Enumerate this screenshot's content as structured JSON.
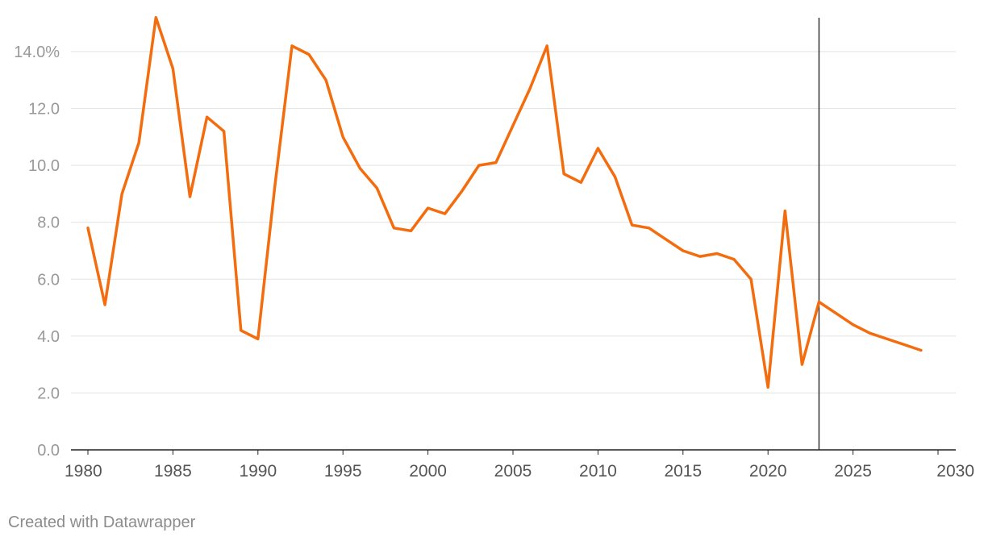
{
  "chart_data": {
    "type": "line",
    "title": "",
    "xlabel": "",
    "ylabel": "",
    "xlim": [
      1980,
      2030
    ],
    "ylim": [
      0,
      15.5
    ],
    "x_ticks": [
      1980,
      1985,
      1990,
      1995,
      2000,
      2005,
      2010,
      2015,
      2020,
      2025,
      2030
    ],
    "x_tick_labels": [
      "1980",
      "1985",
      "1990",
      "1995",
      "2000",
      "2005",
      "2010",
      "2015",
      "2020",
      "2025",
      "2030"
    ],
    "y_ticks": [
      0,
      2,
      4,
      6,
      8,
      10,
      12,
      14
    ],
    "y_tick_labels": [
      "0.0",
      "2.0",
      "4.0",
      "6.0",
      "8.0",
      "10.0",
      "12.0",
      "14.0%"
    ],
    "grid": true,
    "vertical_marker_x": 2023,
    "line_color": "#f36c0e",
    "grid_color": "#e2e2e2",
    "axis_color": "#222222",
    "series": [
      {
        "x": [
          1980,
          1981,
          1982,
          1983,
          1984,
          1985,
          1986,
          1987,
          1988,
          1989,
          1990,
          1991,
          1992,
          1993,
          1994,
          1995,
          1996,
          1997,
          1998,
          1999,
          2000,
          2001,
          2002,
          2003,
          2004,
          2005,
          2006,
          2007,
          2008,
          2009,
          2010,
          2011,
          2012,
          2013,
          2014,
          2015,
          2016,
          2017,
          2018,
          2019,
          2020,
          2021,
          2022,
          2023,
          2024,
          2025,
          2026,
          2027,
          2028,
          2029
        ],
        "values": [
          7.8,
          5.1,
          9.0,
          10.8,
          15.2,
          13.4,
          8.9,
          11.7,
          11.2,
          4.2,
          3.9,
          9.3,
          14.2,
          13.9,
          13.0,
          11.0,
          9.9,
          9.2,
          7.8,
          7.7,
          8.5,
          8.3,
          9.1,
          10.0,
          10.1,
          11.4,
          12.7,
          14.2,
          9.7,
          9.4,
          10.6,
          9.6,
          7.9,
          7.8,
          7.4,
          7.0,
          6.8,
          6.9,
          6.7,
          6.0,
          2.2,
          8.4,
          3.0,
          5.2,
          4.8,
          4.4,
          4.1,
          3.9,
          3.7,
          3.5
        ]
      }
    ]
  },
  "footer": {
    "credit": "Created with Datawrapper"
  }
}
